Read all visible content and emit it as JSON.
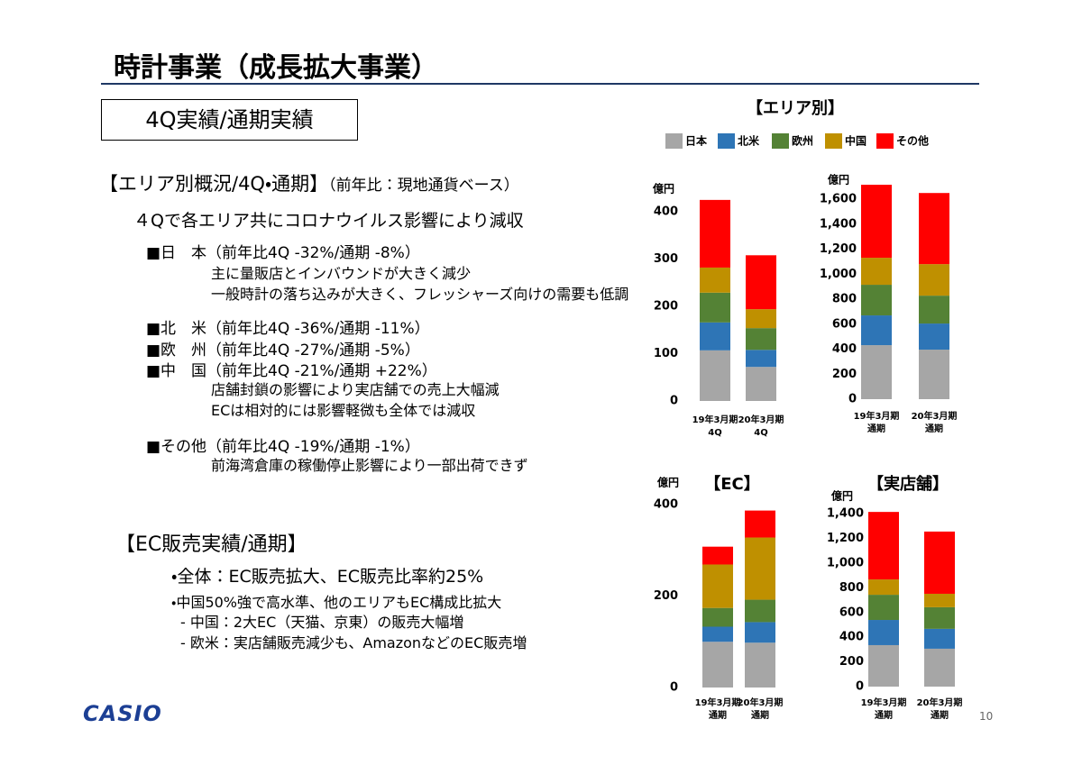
{
  "slide": {
    "title": "時計事業（成長拡大事業）",
    "box_label": "4Q実績/通期実績",
    "area_heading": "【エリア別概況/4Q・通期】",
    "area_heading_note": "（前年比：現地通貨ベース）",
    "lines": [
      "４Qで各エリア共にコロナウイルス影響により減収",
      "■日　本（前年比4Q -32%/通期 -8%）",
      "主に量販店とインバウンドが大きく減少",
      "一般時計の落ち込みが大きく、フレッシャーズ向けの需要も低調",
      "■北　米（前年比4Q -36%/通期 -11%）",
      "■欧　州（前年比4Q -27%/通期 -5%）",
      "■中　国（前年比4Q -21%/通期 +22%）",
      "店舗封鎖の影響により実店舗での売上大幅減",
      "ECは相対的には影響軽微も全体では減収",
      "■その他（前年比4Q -19%/通期 -1%）",
      "前海湾倉庫の稼働停止影響により一部出荷できず"
    ],
    "ec_heading": "【EC販売実績/通期】",
    "ec_lines": [
      "・全体：EC販売拡大、EC販売比率約25%",
      "・中国50%強で高水準、他のエリアもEC構成比拡大",
      "- 中国：2大EC（天猫、京東）の販売大幅増",
      "- 欧米：実店舗販売減少も、AmazonなどのEC販売増"
    ],
    "logo": "CASIO",
    "page_number": "10"
  },
  "legend": {
    "title": "【エリア別】",
    "items": [
      {
        "name": "日本",
        "color": "#a6a6a6"
      },
      {
        "name": "北米",
        "color": "#2e75b6"
      },
      {
        "name": "欧州",
        "color": "#548235"
      },
      {
        "name": "中国",
        "color": "#bf9000"
      },
      {
        "name": "その他",
        "color": "#ff0000"
      }
    ]
  },
  "chart_data": [
    {
      "type": "stacked_bar",
      "y_unit": "億円",
      "categories": [
        [
          "19年3月期",
          "4Q"
        ],
        [
          "20年3月期",
          "4Q"
        ]
      ],
      "series": [
        {
          "values": [
            107,
            72
          ]
        },
        {
          "values": [
            59,
            36
          ]
        },
        {
          "values": [
            63,
            46
          ]
        },
        {
          "values": [
            53,
            40
          ]
        },
        {
          "values": [
            143,
            114
          ]
        }
      ],
      "ylim": [
        0,
        450
      ],
      "yticks": [
        0,
        100,
        200,
        300,
        400
      ]
    },
    {
      "type": "stacked_bar",
      "y_unit": "億円",
      "categories": [
        [
          "19年3月期",
          "通期"
        ],
        [
          "20年3月期",
          "通期"
        ]
      ],
      "series": [
        {
          "values": [
            432,
            396
          ]
        },
        {
          "values": [
            238,
            209
          ]
        },
        {
          "values": [
            245,
            223
          ]
        },
        {
          "values": [
            216,
            252
          ]
        },
        {
          "values": [
            584,
            569
          ]
        }
      ],
      "ylim": [
        0,
        1800
      ],
      "yticks": [
        0,
        200,
        400,
        600,
        800,
        {
          "value": 1000,
          "label": "1,000"
        },
        {
          "value": 1200,
          "label": "1,200"
        },
        {
          "value": 1400,
          "label": "1,400"
        },
        {
          "value": 1600,
          "label": "1,600"
        }
      ]
    },
    {
      "type": "stacked_bar",
      "title": "【EC】",
      "y_unit": "億円",
      "categories": [
        [
          "19年3月期",
          "通期"
        ],
        [
          "20年3月期",
          "通期"
        ]
      ],
      "series": [
        {
          "values": [
            100,
            98
          ]
        },
        {
          "values": [
            33,
            45
          ]
        },
        {
          "values": [
            41,
            49
          ]
        },
        {
          "values": [
            95,
            136
          ]
        },
        {
          "values": [
            39,
            59
          ]
        }
      ],
      "ylim": [
        0,
        400
      ],
      "yticks": [
        0,
        200,
        400
      ]
    },
    {
      "type": "stacked_bar",
      "title": "【実店舗】",
      "y_unit": "億円",
      "categories": [
        [
          "19年3月期",
          "通期"
        ],
        [
          "20年3月期",
          "通期"
        ]
      ],
      "series": [
        {
          "values": [
            336,
            307
          ]
        },
        {
          "values": [
            204,
            161
          ]
        },
        {
          "values": [
            204,
            175
          ]
        },
        {
          "values": [
            124,
            109
          ]
        },
        {
          "values": [
            547,
            504
          ]
        }
      ],
      "ylim": [
        0,
        1500
      ],
      "yticks": [
        0,
        200,
        400,
        600,
        800,
        {
          "value": 1000,
          "label": "1,000"
        },
        {
          "value": 1200,
          "label": "1,200"
        },
        {
          "value": 1400,
          "label": "1,400"
        }
      ]
    }
  ]
}
